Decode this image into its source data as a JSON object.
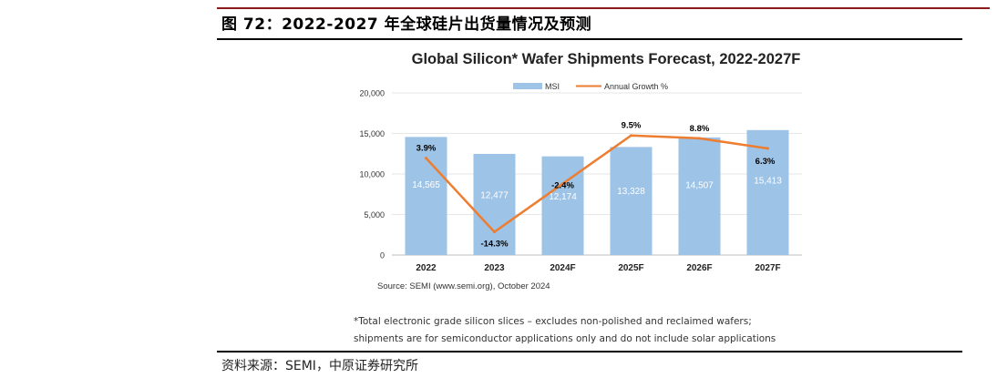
{
  "figure_title": "图 72：2022-2027 年全球硅片出货量情况及预测",
  "chart_data": {
    "type": "bar",
    "title": "Global Silicon* Wafer Shipments Forecast, 2022-2027F",
    "categories": [
      "2022",
      "2023",
      "2024F",
      "2025F",
      "2026F",
      "2027F"
    ],
    "series": [
      {
        "name": "MSI",
        "type": "bar",
        "axis": "left",
        "color": "#9dc3e6",
        "values": [
          14565,
          12477,
          12174,
          13328,
          14507,
          15413
        ],
        "value_labels": [
          "14,565",
          "12,477",
          "12,174",
          "13,328",
          "14,507",
          "15,413"
        ]
      },
      {
        "name": "Annual Growth %",
        "type": "line",
        "axis": "right",
        "color": "#ed7d31",
        "values": [
          3.9,
          -14.3,
          -2.4,
          9.5,
          8.8,
          6.3
        ],
        "value_labels": [
          "3.9%",
          "-14.3%",
          "-2.4%",
          "9.5%",
          "8.8%",
          "6.3%"
        ]
      }
    ],
    "y_ticks": [
      "20,000",
      "15,000",
      "10,000",
      "5,000",
      "0"
    ],
    "ylim": [
      0,
      20000
    ],
    "y2lim": [
      -20,
      20
    ],
    "legend": [
      "MSI",
      "Annual Growth %"
    ],
    "legend_position": "top",
    "source_note": "Source: SEMI (www.semi.org), October 2024",
    "xlabel": "",
    "ylabel": ""
  },
  "footnote_line1": "*Total electronic grade silicon slices – excludes non-polished and reclaimed wafers;",
  "footnote_line2": "shipments are for semiconductor applications only and do not include solar applications",
  "source": "资料来源：SEMI，中原证券研究所"
}
